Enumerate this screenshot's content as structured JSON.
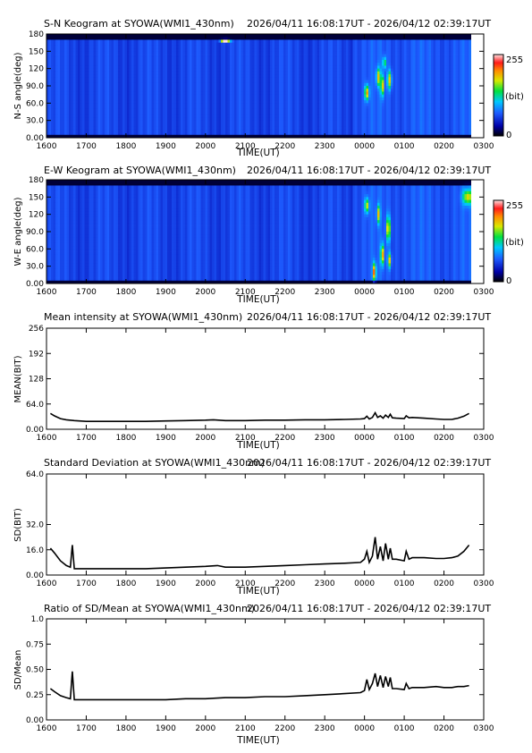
{
  "chart_data": [
    {
      "type": "heatmap",
      "title": "S-N Keogram at SYOWA(WMI1_430nm)",
      "time_range": "2026/04/11 16:08:17UT - 2026/04/12 02:39:17UT",
      "xlabel": "TIME(UT)",
      "ylabel": "N-S angle(deg)",
      "xticks": [
        "1600",
        "1700",
        "1800",
        "1900",
        "2000",
        "2100",
        "2200",
        "2300",
        "0000",
        "0100",
        "0200",
        "0300"
      ],
      "yticks": [
        "0.00",
        "30.0",
        "60.0",
        "90.0",
        "120",
        "150",
        "180"
      ],
      "xlim": [
        0,
        11
      ],
      "ylim": [
        0,
        180
      ],
      "colorbar": {
        "min_label": "0",
        "max_label": "255",
        "unit": "(bit)"
      },
      "features": [
        {
          "t": 8.06,
          "a": 78,
          "intensity": 0.55,
          "w": 0.05,
          "h": 25
        },
        {
          "t": 8.35,
          "a": 105,
          "intensity": 0.45,
          "w": 0.05,
          "h": 30
        },
        {
          "t": 8.45,
          "a": 90,
          "intensity": 0.5,
          "w": 0.04,
          "h": 35
        },
        {
          "t": 8.63,
          "a": 100,
          "intensity": 0.45,
          "w": 0.05,
          "h": 30
        },
        {
          "t": 8.5,
          "a": 130,
          "intensity": 0.35,
          "w": 0.04,
          "h": 20
        },
        {
          "t": 4.5,
          "a": 168,
          "intensity": 0.9,
          "w": 0.1,
          "h": 5
        }
      ]
    },
    {
      "type": "heatmap",
      "title": "E-W Keogram at SYOWA(WMI1_430nm)",
      "time_range": "2026/04/11 16:08:17UT - 2026/04/12 02:39:17UT",
      "xlabel": "TIME(UT)",
      "ylabel": "W-E angle(deg)",
      "xticks": [
        "1600",
        "1700",
        "1800",
        "1900",
        "2000",
        "2100",
        "2200",
        "2300",
        "0000",
        "0100",
        "0200",
        "0300"
      ],
      "yticks": [
        "0.00",
        "30.0",
        "60.0",
        "90.0",
        "120",
        "150",
        "180"
      ],
      "xlim": [
        0,
        11
      ],
      "ylim": [
        0,
        180
      ],
      "colorbar": {
        "min_label": "0",
        "max_label": "255",
        "unit": "(bit)"
      },
      "features": [
        {
          "t": 8.06,
          "a": 135,
          "intensity": 0.45,
          "w": 0.05,
          "h": 25
        },
        {
          "t": 8.25,
          "a": 20,
          "intensity": 0.6,
          "w": 0.04,
          "h": 30
        },
        {
          "t": 8.35,
          "a": 120,
          "intensity": 0.45,
          "w": 0.04,
          "h": 30
        },
        {
          "t": 8.45,
          "a": 50,
          "intensity": 0.55,
          "w": 0.04,
          "h": 35
        },
        {
          "t": 8.6,
          "a": 95,
          "intensity": 0.5,
          "w": 0.05,
          "h": 40
        },
        {
          "t": 8.63,
          "a": 40,
          "intensity": 0.45,
          "w": 0.04,
          "h": 25
        },
        {
          "t": 10.6,
          "a": 150,
          "intensity": 0.45,
          "w": 0.12,
          "h": 25
        }
      ]
    },
    {
      "type": "line",
      "title": "Mean intensity at SYOWA(WMI1_430nm)",
      "time_range": "2026/04/11 16:08:17UT - 2026/04/12 02:39:17UT",
      "xlabel": "TIME(UT)",
      "ylabel": "MEAN(BIT)",
      "xticks": [
        "1600",
        "1700",
        "1800",
        "1900",
        "2000",
        "2100",
        "2200",
        "2300",
        "0000",
        "0100",
        "0200",
        "0300"
      ],
      "yticks": [
        "0.00",
        "64.0",
        "128",
        "192",
        "256"
      ],
      "xlim": [
        0,
        11
      ],
      "ylim": [
        0,
        256
      ],
      "x": [
        0.1,
        0.2,
        0.35,
        0.5,
        0.7,
        1,
        1.5,
        2,
        2.5,
        3,
        3.5,
        4,
        4.2,
        4.5,
        5,
        5.5,
        6,
        6.5,
        7,
        7.5,
        7.9,
        8.0,
        8.06,
        8.12,
        8.2,
        8.27,
        8.33,
        8.4,
        8.47,
        8.53,
        8.6,
        8.65,
        8.7,
        8.8,
        9,
        9.05,
        9.12,
        9.2,
        9.5,
        9.8,
        10,
        10.2,
        10.35,
        10.5,
        10.63
      ],
      "y": [
        40,
        34,
        27,
        24,
        22,
        20,
        20,
        20,
        20,
        21,
        22,
        23,
        24,
        22,
        22,
        23,
        23,
        24,
        24,
        25,
        26,
        27,
        33,
        26,
        30,
        42,
        30,
        34,
        28,
        36,
        30,
        38,
        29,
        28,
        27,
        34,
        29,
        30,
        28,
        26,
        25,
        25,
        28,
        33,
        40
      ]
    },
    {
      "type": "line",
      "title": "Standard Deviation at SYOWA(WMI1_430nm)",
      "time_range": "2026/04/11 16:08:17UT - 2026/04/12 02:39:17UT",
      "xlabel": "",
      "ylabel": "SD(BIT)",
      "xticks": [
        "1600",
        "1700",
        "1800",
        "1900",
        "2000",
        "2100",
        "2200",
        "2300",
        "0000",
        "0100",
        "0200",
        "0300"
      ],
      "yticks": [
        "0.00",
        "16.0",
        "32.0",
        "64.0"
      ],
      "xlim": [
        0,
        11
      ],
      "ylim": [
        0,
        64
      ],
      "x": [
        0.1,
        0.2,
        0.35,
        0.5,
        0.6,
        0.65,
        0.7,
        1,
        1.5,
        2,
        2.5,
        3,
        3.5,
        4,
        4.3,
        4.5,
        5,
        5.5,
        6,
        6.5,
        7,
        7.5,
        7.9,
        8.0,
        8.06,
        8.12,
        8.2,
        8.27,
        8.33,
        8.4,
        8.47,
        8.53,
        8.6,
        8.65,
        8.7,
        8.8,
        9,
        9.05,
        9.12,
        9.2,
        9.5,
        9.8,
        10,
        10.2,
        10.35,
        10.5,
        10.63
      ],
      "y": [
        17,
        14,
        9,
        6,
        5,
        19,
        4,
        4,
        4,
        4,
        4,
        4.5,
        5,
        5.5,
        6,
        5,
        5,
        5.5,
        6,
        6.5,
        7,
        7.5,
        8,
        10,
        15,
        8,
        12,
        24,
        10,
        18,
        9,
        20,
        10,
        17,
        10,
        10,
        9,
        15,
        10,
        11,
        11,
        10.5,
        10.5,
        11,
        12,
        15,
        19
      ]
    },
    {
      "type": "line",
      "title": "Ratio of SD/Mean at SYOWA(WMI1_430nm)",
      "time_range": "2026/04/11 16:08:17UT - 2026/04/12 02:39:17UT",
      "xlabel": "TIME(UT)",
      "ylabel": "SD/Mean",
      "xticks": [
        "1600",
        "1700",
        "1800",
        "1900",
        "2000",
        "2100",
        "2200",
        "2300",
        "0000",
        "0100",
        "0200",
        "0300"
      ],
      "yticks": [
        "0.00",
        "0.25",
        "0.50",
        "0.75",
        "1.0"
      ],
      "xlim": [
        0,
        11
      ],
      "ylim": [
        0,
        1.0
      ],
      "x": [
        0.1,
        0.2,
        0.35,
        0.5,
        0.6,
        0.65,
        0.7,
        1,
        1.5,
        2,
        2.5,
        3,
        3.5,
        4,
        4.5,
        5,
        5.5,
        6,
        6.5,
        7,
        7.5,
        7.9,
        8.0,
        8.06,
        8.12,
        8.2,
        8.27,
        8.33,
        8.4,
        8.47,
        8.53,
        8.6,
        8.65,
        8.7,
        8.8,
        9,
        9.05,
        9.12,
        9.2,
        9.5,
        9.8,
        10,
        10.2,
        10.35,
        10.5,
        10.63
      ],
      "y": [
        0.31,
        0.28,
        0.24,
        0.22,
        0.21,
        0.48,
        0.2,
        0.2,
        0.2,
        0.2,
        0.2,
        0.2,
        0.21,
        0.21,
        0.22,
        0.22,
        0.23,
        0.23,
        0.24,
        0.25,
        0.26,
        0.27,
        0.29,
        0.4,
        0.3,
        0.36,
        0.46,
        0.33,
        0.44,
        0.32,
        0.43,
        0.33,
        0.42,
        0.31,
        0.31,
        0.3,
        0.36,
        0.31,
        0.32,
        0.32,
        0.33,
        0.32,
        0.32,
        0.33,
        0.33,
        0.34
      ]
    }
  ]
}
